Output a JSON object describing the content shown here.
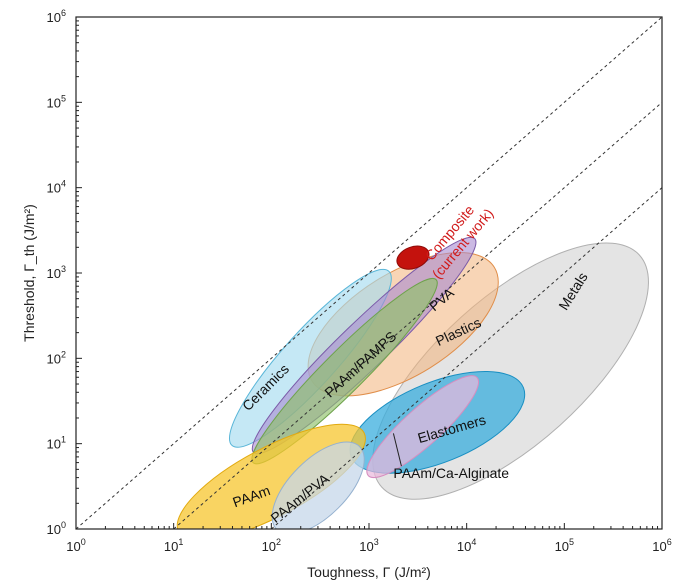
{
  "chart_data": {
    "type": "bubble-map",
    "xlabel": "Toughness, Γ (J/m²)",
    "ylabel": "Threshold, Γ_th (J/m²)",
    "xscale": "log",
    "yscale": "log",
    "xlim_exp": [
      0,
      6
    ],
    "ylim_exp": [
      0,
      6
    ],
    "x_ticks": [
      {
        "base": "10",
        "exp": "0",
        "value": 1
      },
      {
        "base": "10",
        "exp": "1",
        "value": 10
      },
      {
        "base": "10",
        "exp": "2",
        "value": 100
      },
      {
        "base": "10",
        "exp": "3",
        "value": 1000
      },
      {
        "base": "10",
        "exp": "4",
        "value": 10000
      },
      {
        "base": "10",
        "exp": "5",
        "value": 100000
      },
      {
        "base": "10",
        "exp": "6",
        "value": 1000000
      }
    ],
    "y_ticks": [
      {
        "base": "10",
        "exp": "0",
        "value": 1
      },
      {
        "base": "10",
        "exp": "1",
        "value": 10
      },
      {
        "base": "10",
        "exp": "2",
        "value": 100
      },
      {
        "base": "10",
        "exp": "3",
        "value": 1000
      },
      {
        "base": "10",
        "exp": "4",
        "value": 10000
      },
      {
        "base": "10",
        "exp": "5",
        "value": 100000
      },
      {
        "base": "10",
        "exp": "6",
        "value": 1000000
      }
    ],
    "reference_lines": [
      {
        "name": "Γ_th = Γ",
        "ratio_exp": 0
      },
      {
        "name": "Γ_th = Γ/10",
        "ratio_exp": -1
      },
      {
        "name": "Γ_th = Γ/100",
        "ratio_exp": -2
      }
    ],
    "regions": [
      {
        "name": "Metals",
        "label": "Metals",
        "cx_exp": 4.45,
        "cy_exp": 1.85,
        "major_dec": 3.55,
        "minor_dec": 1.5,
        "angle_deg": 42,
        "fill": "#d2d2d2",
        "stroke": "#b0b0b0",
        "opacity": 0.6,
        "label_x_exp": 5.1,
        "label_y_exp": 2.78,
        "label_rot": -58,
        "label_color": "#111111"
      },
      {
        "name": "Plastics",
        "label": "Plastics",
        "cx_exp": 3.35,
        "cy_exp": 2.4,
        "major_dec": 2.2,
        "minor_dec": 1.05,
        "angle_deg": 32,
        "fill": "#f2b27a",
        "stroke": "#e08e4a",
        "opacity": 0.55,
        "label_x_exp": 3.92,
        "label_y_exp": 2.3,
        "label_rot": -25,
        "label_color": "#111111"
      },
      {
        "name": "Ceramics",
        "label": "Ceramics",
        "cx_exp": 2.4,
        "cy_exp": 2.0,
        "major_dec": 2.4,
        "minor_dec": 0.55,
        "angle_deg": 48,
        "fill": "#a6dbef",
        "stroke": "#5ab6d8",
        "opacity": 0.65,
        "label_x_exp": 1.95,
        "label_y_exp": 1.65,
        "label_rot": -45,
        "label_color": "#111111"
      },
      {
        "name": "PVA",
        "label": "PVA",
        "cx_exp": 2.95,
        "cy_exp": 2.15,
        "major_dec": 3.15,
        "minor_dec": 0.48,
        "angle_deg": 44,
        "fill": "#a98bd0",
        "stroke": "#7a5aa8",
        "opacity": 0.6,
        "label_x_exp": 3.75,
        "label_y_exp": 2.68,
        "label_rot": -40,
        "label_color": "#111111"
      },
      {
        "name": "PAAm/PAMPS",
        "label": "PAAm/PAMPS",
        "cx_exp": 2.75,
        "cy_exp": 1.85,
        "major_dec": 2.65,
        "minor_dec": 0.42,
        "angle_deg": 45,
        "fill": "#8fc06a",
        "stroke": "#6ea24c",
        "opacity": 0.65,
        "label_x_exp": 2.92,
        "label_y_exp": 1.92,
        "label_rot": -42,
        "label_color": "#111111"
      },
      {
        "name": "Elastomers",
        "label": "Elastomers",
        "cx_exp": 3.7,
        "cy_exp": 1.25,
        "major_dec": 1.9,
        "minor_dec": 0.82,
        "angle_deg": 22,
        "fill": "#3aaede",
        "stroke": "#1a8fc2",
        "opacity": 0.75,
        "label_x_exp": 3.85,
        "label_y_exp": 1.16,
        "label_rot": -16,
        "label_color": "#111111"
      },
      {
        "name": "Pink region",
        "label": "",
        "cx_exp": 3.55,
        "cy_exp": 1.2,
        "major_dec": 1.5,
        "minor_dec": 0.38,
        "angle_deg": 42,
        "fill": "#eab8dc",
        "stroke": "#d68ec0",
        "opacity": 0.7,
        "label_x_exp": 0,
        "label_y_exp": 0,
        "label_rot": 0,
        "label_color": "#111111"
      },
      {
        "name": "PAAm",
        "label": "PAAm",
        "cx_exp": 2.0,
        "cy_exp": 0.55,
        "major_dec": 2.15,
        "minor_dec": 0.7,
        "angle_deg": 28,
        "fill": "#f7c62e",
        "stroke": "#e2aa10",
        "opacity": 0.75,
        "label_x_exp": 1.8,
        "label_y_exp": 0.37,
        "label_rot": -20,
        "label_color": "#111111"
      },
      {
        "name": "PAAm/PVA",
        "label": "PAAm/PVA",
        "cx_exp": 2.48,
        "cy_exp": 0.48,
        "major_dec": 1.2,
        "minor_dec": 0.58,
        "angle_deg": 45,
        "fill": "#c5d7ea",
        "stroke": "#95b1cf",
        "opacity": 0.75,
        "label_x_exp": 2.3,
        "label_y_exp": 0.35,
        "label_rot": -38,
        "label_color": "#111111"
      },
      {
        "name": "Composite (current work)",
        "label": "",
        "cx_exp": 3.45,
        "cy_exp": 3.18,
        "major_dec": 0.34,
        "minor_dec": 0.22,
        "angle_deg": 20,
        "fill": "#c4120d",
        "stroke": "#8e0b08",
        "opacity": 1.0,
        "label_x_exp": 0,
        "label_y_exp": 0,
        "label_rot": 0,
        "label_color": "#111111"
      }
    ],
    "composite_annotation": {
      "line1": "Composite",
      "line2": "(current work)",
      "x_exp": 3.88,
      "y_exp": 3.42,
      "rotation_deg": -50,
      "color": "#d11a1a"
    },
    "callout": {
      "label": "PAAm/Ca-Alginate",
      "point_x_exp": 3.25,
      "point_y_exp": 1.12,
      "text_x_exp": 3.25,
      "text_y_exp": 0.62
    }
  }
}
